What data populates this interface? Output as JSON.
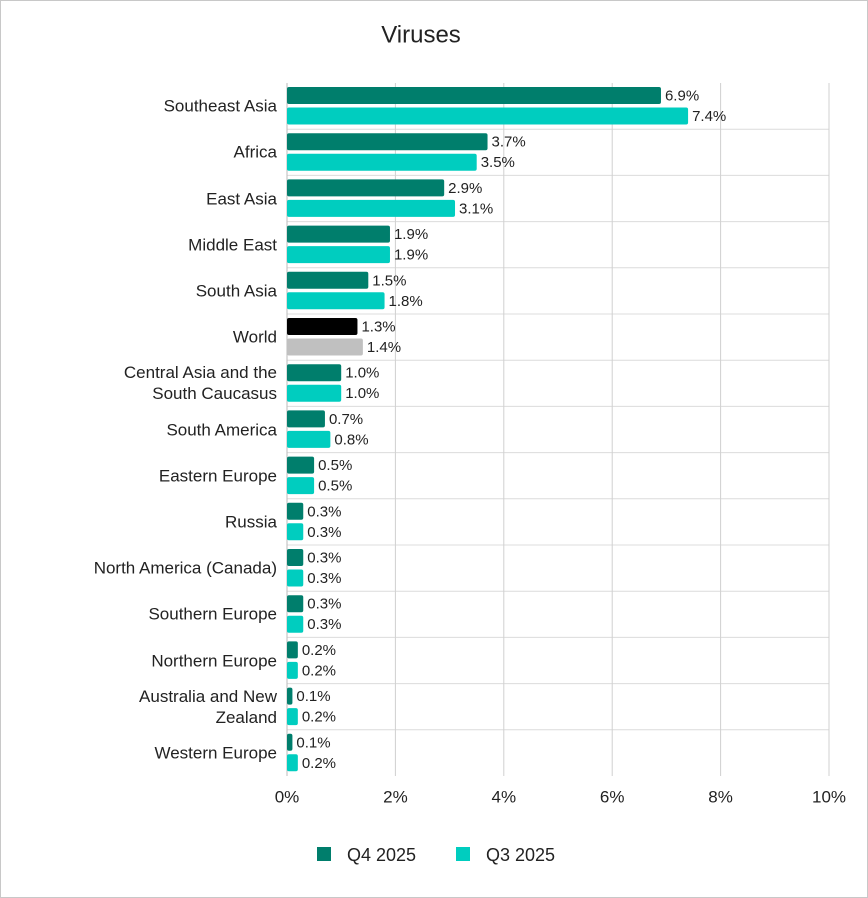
{
  "chart_data": {
    "type": "bar",
    "orientation": "horizontal",
    "title": "Viruses",
    "categories": [
      "Southeast Asia",
      "Africa",
      "East Asia",
      "Middle East",
      "South Asia",
      "World",
      "Central Asia and the South Caucasus",
      "South America",
      "Eastern Europe",
      "Russia",
      "North America (Canada)",
      "Southern Europe",
      "Northern Europe",
      "Australia and New Zealand",
      "Western Europe"
    ],
    "series": [
      {
        "name": "Q4 2025",
        "color": "#007e6c",
        "colors": [
          "#007e6c",
          "#007e6c",
          "#007e6c",
          "#007e6c",
          "#007e6c",
          "#000000",
          "#007e6c",
          "#007e6c",
          "#007e6c",
          "#007e6c",
          "#007e6c",
          "#007e6c",
          "#007e6c",
          "#007e6c",
          "#007e6c"
        ],
        "values": [
          6.9,
          3.7,
          2.9,
          1.9,
          1.5,
          1.3,
          1.0,
          0.7,
          0.5,
          0.3,
          0.3,
          0.3,
          0.2,
          0.1,
          0.1
        ],
        "value_labels": [
          "6.9%",
          "3.7%",
          "2.9%",
          "1.9%",
          "1.5%",
          "1.3%",
          "1.0%",
          "0.7%",
          "0.5%",
          "0.3%",
          "0.3%",
          "0.3%",
          "0.2%",
          "0.1%",
          "0.1%"
        ]
      },
      {
        "name": "Q3 2025",
        "color": "#00cdbf",
        "colors": [
          "#00cdbf",
          "#00cdbf",
          "#00cdbf",
          "#00cdbf",
          "#00cdbf",
          "#c0c0c0",
          "#00cdbf",
          "#00cdbf",
          "#00cdbf",
          "#00cdbf",
          "#00cdbf",
          "#00cdbf",
          "#00cdbf",
          "#00cdbf",
          "#00cdbf"
        ],
        "values": [
          7.4,
          3.5,
          3.1,
          1.9,
          1.8,
          1.4,
          1.0,
          0.8,
          0.5,
          0.3,
          0.3,
          0.3,
          0.2,
          0.2,
          0.2
        ],
        "value_labels": [
          "7.4%",
          "3.5%",
          "3.1%",
          "1.9%",
          "1.8%",
          "1.4%",
          "1.0%",
          "0.8%",
          "0.5%",
          "0.3%",
          "0.3%",
          "0.3%",
          "0.2%",
          "0.2%",
          "0.2%"
        ]
      }
    ],
    "xlim": [
      0,
      10
    ],
    "xticks": [
      {
        "value": 0,
        "label": "0%"
      },
      {
        "value": 2,
        "label": "2%"
      },
      {
        "value": 4,
        "label": "4%"
      },
      {
        "value": 6,
        "label": "6%"
      },
      {
        "value": 8,
        "label": "8%"
      },
      {
        "value": 10,
        "label": "10%"
      }
    ],
    "grid": true,
    "legend": "bottom"
  }
}
